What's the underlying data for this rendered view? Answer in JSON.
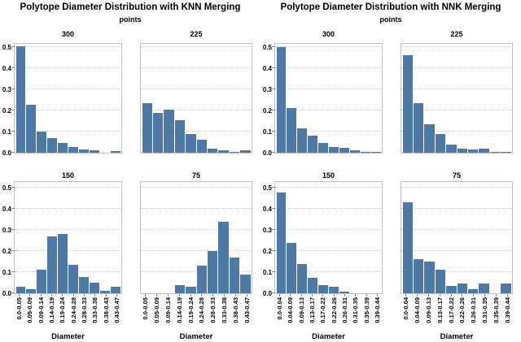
{
  "titles": {
    "knn": "Polytope Diameter Distribution with KNN Merging",
    "nnk": "Polytope Diameter Distribution with NNK Merging",
    "subtitle": "points"
  },
  "axis": {
    "xlabel": "Diameter",
    "ytick_labels": [
      "0.0",
      "0.1",
      "0.2",
      "0.3",
      "0.4",
      "0.5"
    ],
    "ylim": [
      0,
      0.52
    ],
    "grid": "horizontal-dotted"
  },
  "colors": {
    "bar": "#4d79a7",
    "plot_border": "#c3c3c3",
    "gridline": "#c9c9c9",
    "tick": "#8a8a8a",
    "text": "#000000",
    "background": "#ffffff"
  },
  "chart_data": [
    {
      "type": "bar",
      "panel": "KNN Merging",
      "points_label": "300",
      "xlabel": "Diameter",
      "ylim": [
        0,
        0.5
      ],
      "categories": [
        "0.0-0.05",
        "0.05-0.09",
        "0.09-0.14",
        "0.14-0.19",
        "0.19-0.24",
        "0.24-0.28",
        "0.28-0.33",
        "0.33-0.38",
        "0.38-0.43",
        "0.43-0.47"
      ],
      "values": [
        0.505,
        0.225,
        0.1,
        0.068,
        0.045,
        0.025,
        0.014,
        0.011,
        0,
        0.007
      ]
    },
    {
      "type": "bar",
      "panel": "KNN Merging",
      "points_label": "225",
      "xlabel": "Diameter",
      "ylim": [
        0,
        0.5
      ],
      "categories": [
        "0.0-0.05",
        "0.05-0.09",
        "0.09-0.14",
        "0.14-0.19",
        "0.19-0.24",
        "0.24-0.28",
        "0.28-0.33",
        "0.33-0.38",
        "0.38-0.43",
        "0.43-0.47"
      ],
      "values": [
        0.235,
        0.19,
        0.205,
        0.155,
        0.09,
        0.06,
        0.02,
        0.013,
        0.004,
        0.01
      ]
    },
    {
      "type": "bar",
      "panel": "KNN Merging",
      "points_label": "150",
      "xlabel": "Diameter",
      "ylim": [
        0,
        0.5
      ],
      "categories": [
        "0.0-0.05",
        "0.05-0.09",
        "0.09-0.14",
        "0.14-0.19",
        "0.19-0.24",
        "0.24-0.28",
        "0.28-0.33",
        "0.33-0.38",
        "0.38-0.43",
        "0.43-0.47"
      ],
      "values": [
        0.03,
        0.02,
        0.11,
        0.27,
        0.28,
        0.135,
        0.075,
        0.05,
        0.01,
        0.03
      ]
    },
    {
      "type": "bar",
      "panel": "KNN Merging",
      "points_label": "75",
      "xlabel": "Diameter",
      "ylim": [
        0,
        0.5
      ],
      "categories": [
        "0.0-0.05",
        "0.05-0.09",
        "0.09-0.14",
        "0.14-0.19",
        "0.19-0.24",
        "0.24-0.28",
        "0.28-0.33",
        "0.33-0.38",
        "0.38-0.43",
        "0.43-0.47"
      ],
      "values": [
        0,
        0,
        0,
        0.04,
        0.03,
        0.13,
        0.2,
        0.34,
        0.17,
        0.09
      ]
    },
    {
      "type": "bar",
      "panel": "NNK Merging",
      "points_label": "300",
      "xlabel": "Diameter",
      "ylim": [
        0,
        0.5
      ],
      "categories": [
        "0.0-0.04",
        "0.04-0.09",
        "0.09-0.13",
        "0.13-0.17",
        "0.17-0.22",
        "0.22-0.26",
        "0.26-0.31",
        "0.31-0.35",
        "0.35-0.39",
        "0.39-0.44"
      ],
      "values": [
        0.5,
        0.21,
        0.115,
        0.08,
        0.048,
        0.027,
        0.024,
        0.012,
        0.005,
        0.003
      ]
    },
    {
      "type": "bar",
      "panel": "NNK Merging",
      "points_label": "225",
      "xlabel": "Diameter",
      "ylim": [
        0,
        0.5
      ],
      "categories": [
        "0.0-0.04",
        "0.04-0.09",
        "0.09-0.13",
        "0.13-0.17",
        "0.17-0.22",
        "0.22-0.26",
        "0.26-0.31",
        "0.31-0.35",
        "0.35-0.39",
        "0.39-0.44"
      ],
      "values": [
        0.46,
        0.235,
        0.135,
        0.09,
        0.04,
        0.02,
        0.015,
        0.02,
        0.005,
        0.005
      ]
    },
    {
      "type": "bar",
      "panel": "NNK Merging",
      "points_label": "150",
      "xlabel": "Diameter",
      "ylim": [
        0,
        0.5
      ],
      "categories": [
        "0.0-0.04",
        "0.04-0.09",
        "0.09-0.13",
        "0.13-0.17",
        "0.17-0.22",
        "0.22-0.26",
        "0.26-0.31",
        "0.31-0.35",
        "0.35-0.39",
        "0.39-0.44"
      ],
      "values": [
        0.475,
        0.24,
        0.14,
        0.073,
        0.04,
        0.032,
        0.008,
        0,
        0,
        0
      ]
    },
    {
      "type": "bar",
      "panel": "NNK Merging",
      "points_label": "75",
      "xlabel": "Diameter",
      "ylim": [
        0,
        0.5
      ],
      "categories": [
        "0.0-0.04",
        "0.04-0.09",
        "0.09-0.13",
        "0.13-0.17",
        "0.17-0.22",
        "0.22-0.26",
        "0.26-0.31",
        "0.31-0.35",
        "0.35-0.39",
        "0.39-0.44"
      ],
      "values": [
        0.43,
        0.16,
        0.15,
        0.11,
        0.035,
        0.045,
        0.02,
        0.045,
        0,
        0.045
      ]
    }
  ]
}
